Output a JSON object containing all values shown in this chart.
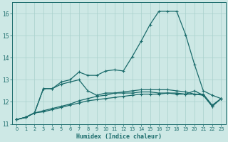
{
  "xlabel": "Humidex (Indice chaleur)",
  "background_color": "#cde8e5",
  "grid_color": "#a8d0cc",
  "line_color": "#1a6b6b",
  "x": [
    0,
    1,
    2,
    3,
    4,
    5,
    6,
    7,
    8,
    9,
    10,
    11,
    12,
    13,
    14,
    15,
    16,
    17,
    18,
    19,
    20,
    21,
    22,
    23
  ],
  "line1": [
    11.2,
    11.3,
    11.5,
    12.6,
    12.6,
    12.9,
    13.0,
    13.35,
    13.2,
    13.2,
    13.4,
    13.45,
    13.4,
    14.05,
    14.75,
    15.5,
    16.1,
    16.1,
    16.1,
    15.05,
    13.7,
    12.5,
    12.3,
    12.15
  ],
  "line2": [
    11.2,
    11.3,
    11.5,
    12.6,
    12.6,
    12.8,
    12.9,
    13.0,
    12.5,
    12.3,
    12.4,
    12.4,
    12.4,
    12.4,
    12.45,
    12.45,
    12.4,
    12.4,
    12.35,
    12.35,
    12.5,
    12.3,
    11.8,
    12.15
  ],
  "line3": [
    11.2,
    11.3,
    11.5,
    11.55,
    11.65,
    11.75,
    11.85,
    11.95,
    12.05,
    12.1,
    12.15,
    12.2,
    12.25,
    12.3,
    12.35,
    12.35,
    12.35,
    12.4,
    12.4,
    12.35,
    12.35,
    12.3,
    11.8,
    12.15
  ],
  "line4": [
    11.2,
    11.3,
    11.5,
    11.6,
    11.7,
    11.8,
    11.9,
    12.05,
    12.15,
    12.25,
    12.3,
    12.4,
    12.45,
    12.5,
    12.55,
    12.55,
    12.55,
    12.55,
    12.5,
    12.45,
    12.35,
    12.35,
    11.85,
    12.15
  ],
  "ylim": [
    11.0,
    16.5
  ],
  "yticks": [
    11,
    12,
    13,
    14,
    15,
    16
  ],
  "xticks": [
    0,
    1,
    2,
    3,
    4,
    5,
    6,
    7,
    8,
    9,
    10,
    11,
    12,
    13,
    14,
    15,
    16,
    17,
    18,
    19,
    20,
    21,
    22,
    23
  ]
}
